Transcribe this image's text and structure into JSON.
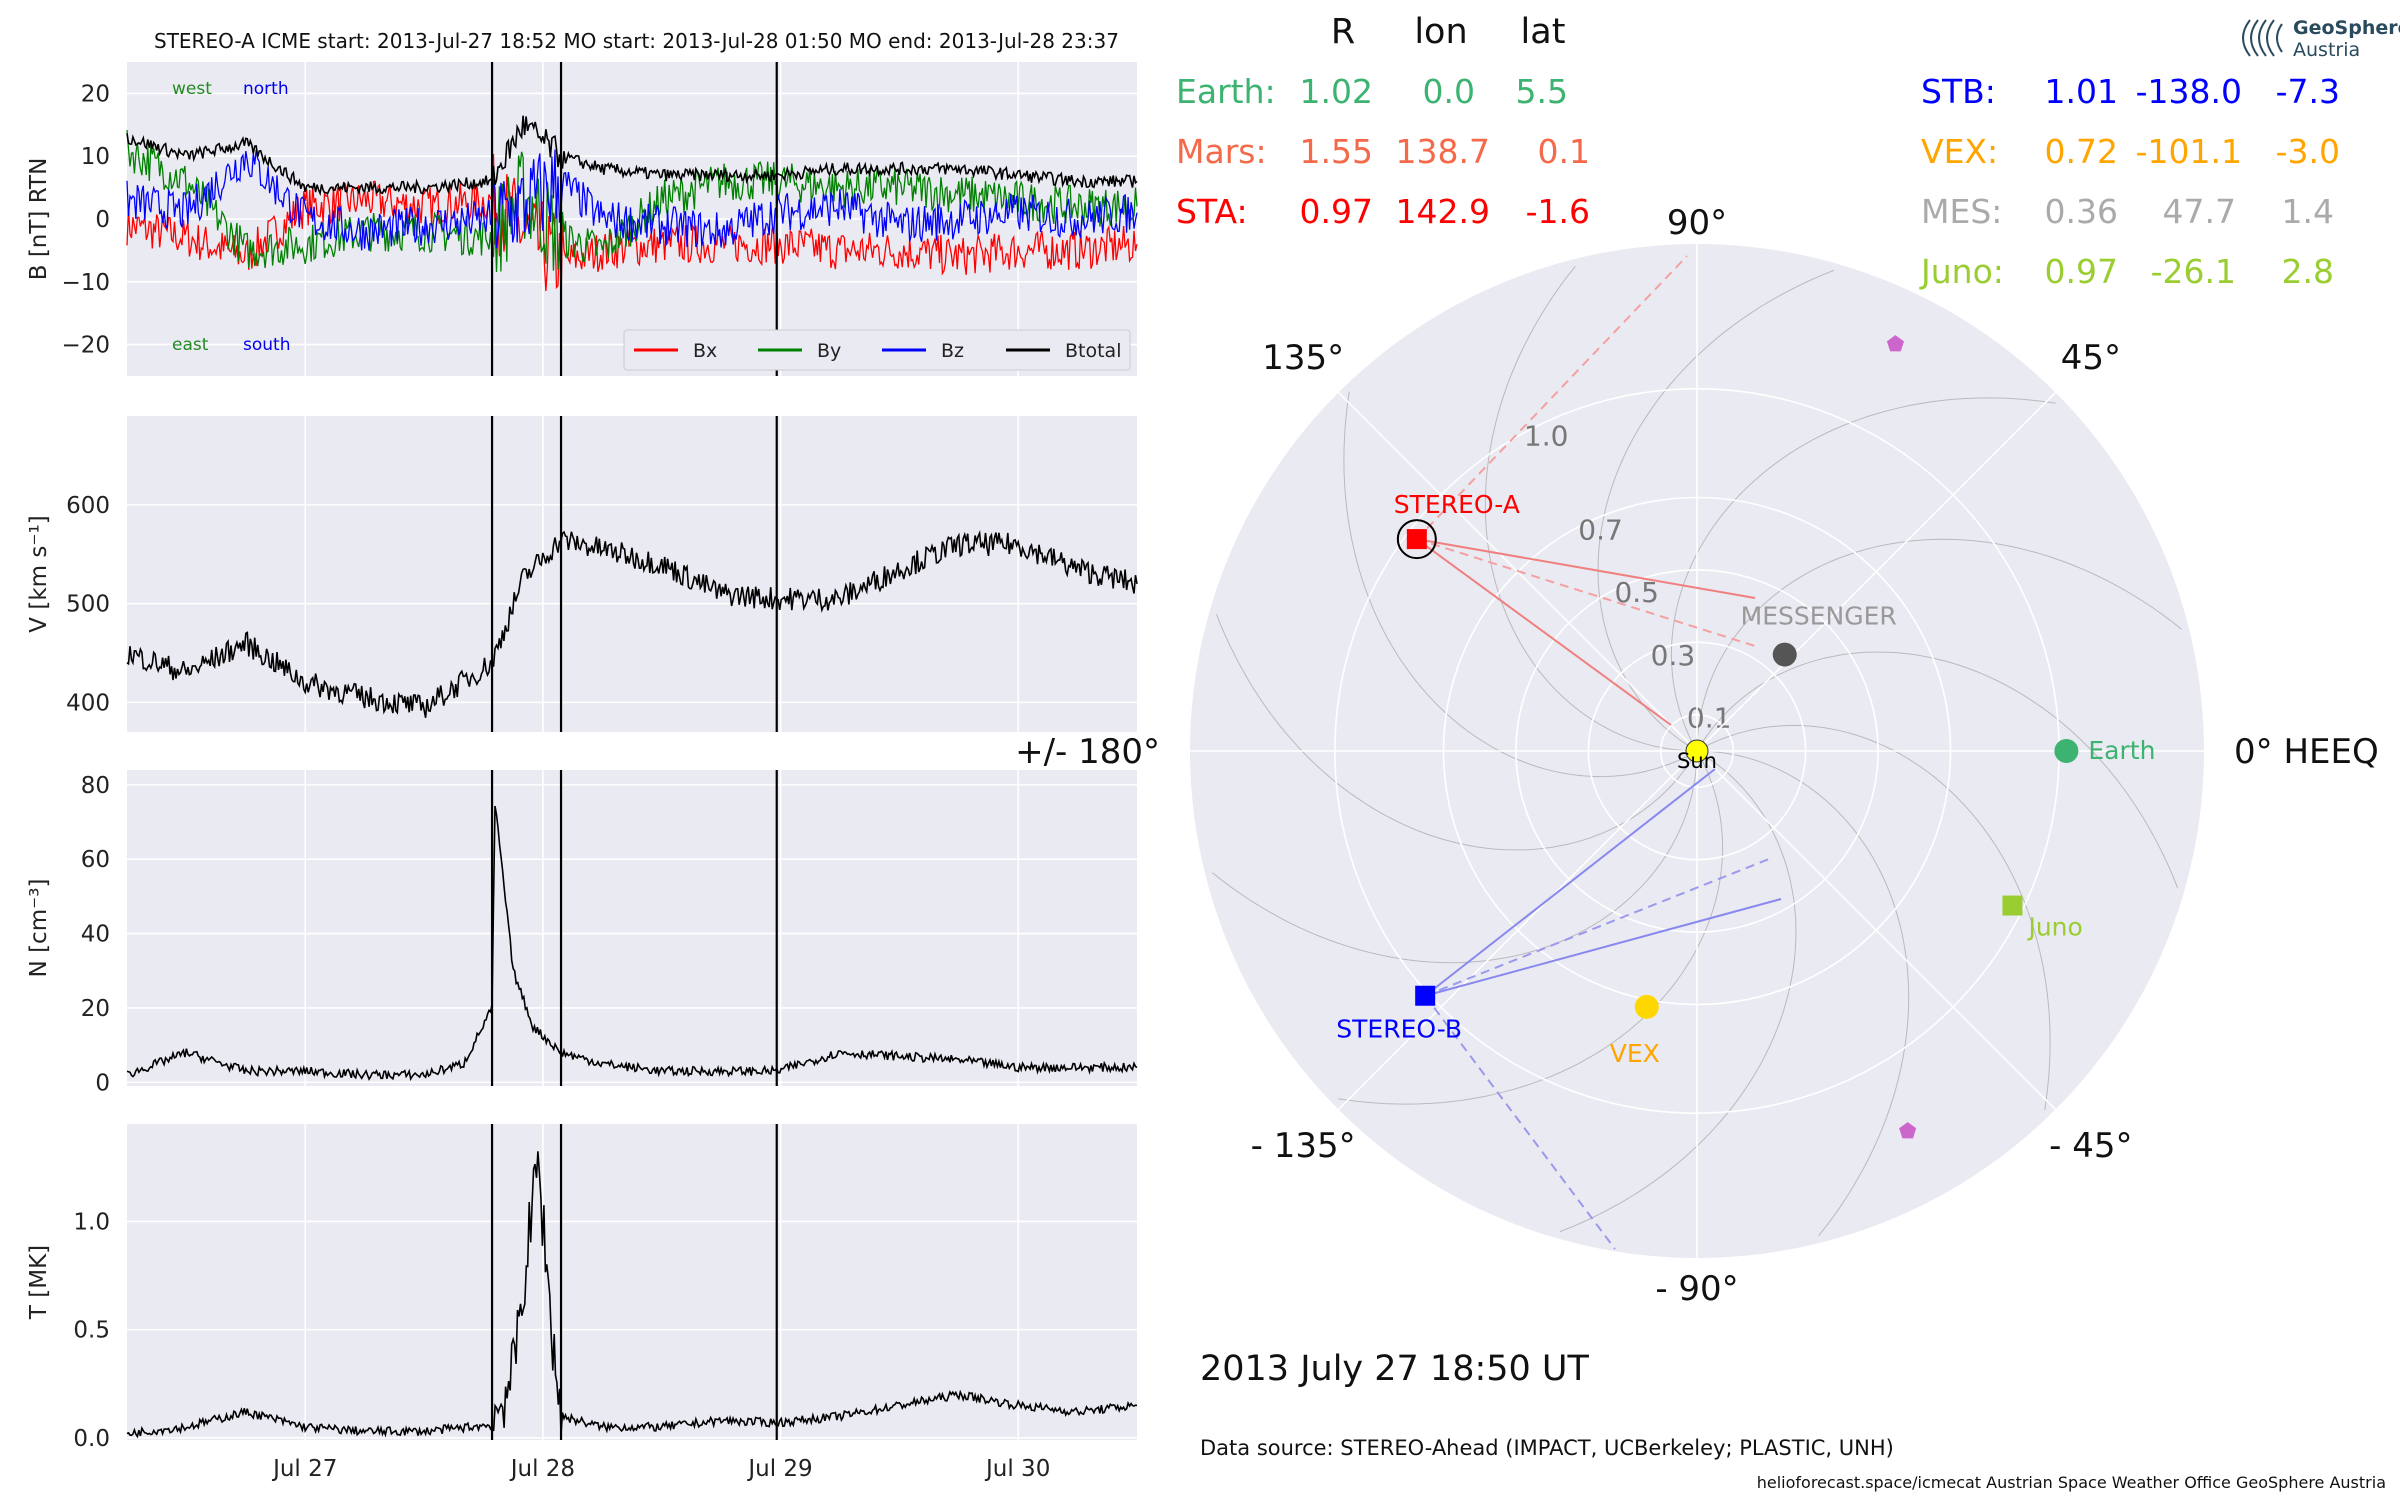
{
  "header": {
    "title": "STEREO-A    ICME start: 2013-Jul-27 18:52   MO start: 2013-Jul-28 01:50   MO end: 2013-Jul-28 23:37"
  },
  "logo": {
    "line1": "GeoSphere",
    "line2": "Austria"
  },
  "positions_table": {
    "columns": [
      "R",
      "lon",
      "lat"
    ],
    "left": [
      {
        "name": "Earth:",
        "r": "1.02",
        "lon": "0.0",
        "lat": "5.5",
        "color": "#3cb371"
      },
      {
        "name": "Mars:",
        "r": "1.55",
        "lon": "138.7",
        "lat": "0.1",
        "color": "#f4694a"
      },
      {
        "name": "STA:",
        "r": "0.97",
        "lon": "142.9",
        "lat": "-1.6",
        "color": "#ff0000"
      }
    ],
    "right": [
      {
        "name": "STB:",
        "r": "1.01",
        "lon": "-138.0",
        "lat": "-7.3",
        "color": "#0000ff"
      },
      {
        "name": "VEX:",
        "r": "0.72",
        "lon": "-101.1",
        "lat": "-3.0",
        "color": "#ffa500"
      },
      {
        "name": "MES:",
        "r": "0.36",
        "lon": "47.7",
        "lat": "1.4",
        "color": "#aaaaaa"
      },
      {
        "name": "Juno:",
        "r": "0.97",
        "lon": "-26.1",
        "lat": "2.8",
        "color": "#9acd32"
      }
    ]
  },
  "footer": {
    "timestamp": "2013 July 27  18:50 UT",
    "source": "Data source: STEREO-Ahead (IMPACT, UCBerkeley; PLASTIC, UNH)",
    "credits": "helioforecast.space/icmecat   Austrian Space Weather Office   GeoSphere Austria"
  },
  "chart_data": [
    {
      "type": "line",
      "panel": "magnetic-field",
      "ylabel": "B [nT] RTN",
      "ylim": [
        -25,
        25
      ],
      "yticks": [
        20,
        10,
        0,
        -10,
        -20
      ],
      "ytick_labels": [
        "20",
        "10",
        "0",
        "−10",
        "−20"
      ],
      "xlim": [
        "2013-07-26 06:00",
        "2013-07-30 12:00"
      ],
      "xticks": [
        "2013-07-27",
        "2013-07-28",
        "2013-07-29",
        "2013-07-30"
      ],
      "xtick_labels": [
        "Jul 27",
        "Jul 28",
        "Jul 29",
        "Jul 30"
      ],
      "grid": true,
      "legend": "bottom-right",
      "annotations": [
        {
          "text": "west",
          "color": "#228b22"
        },
        {
          "text": "north",
          "color": "#0000ee"
        },
        {
          "text": "east",
          "color": "#228b22"
        },
        {
          "text": "south",
          "color": "#0000ee"
        }
      ],
      "series": [
        {
          "name": "Bx",
          "color": "#ff0000",
          "x": [
            "2013-07-26 06:00",
            "2013-07-26 12:00",
            "2013-07-26 18:00",
            "2013-07-27 00:00",
            "2013-07-27 06:00",
            "2013-07-27 12:00",
            "2013-07-27 18:52",
            "2013-07-27 22:00",
            "2013-07-28 01:50",
            "2013-07-28 06:00",
            "2013-07-28 12:00",
            "2013-07-28 18:00",
            "2013-07-28 23:37",
            "2013-07-29 06:00",
            "2013-07-29 12:00",
            "2013-07-29 18:00",
            "2013-07-30 00:00",
            "2013-07-30 06:00",
            "2013-07-30 12:00"
          ],
          "y": [
            -1,
            -3,
            -6,
            2,
            3,
            2,
            3,
            -2,
            -7,
            -5,
            -4,
            -4,
            -4,
            -5,
            -5,
            -6,
            -5,
            -5,
            -4
          ]
        },
        {
          "name": "By",
          "color": "#008000",
          "x": [
            "2013-07-26 06:00",
            "2013-07-26 12:00",
            "2013-07-26 18:00",
            "2013-07-27 00:00",
            "2013-07-27 06:00",
            "2013-07-27 12:00",
            "2013-07-27 18:52",
            "2013-07-27 22:00",
            "2013-07-28 01:50",
            "2013-07-28 06:00",
            "2013-07-28 12:00",
            "2013-07-28 18:00",
            "2013-07-28 23:37",
            "2013-07-29 06:00",
            "2013-07-29 12:00",
            "2013-07-29 18:00",
            "2013-07-30 00:00",
            "2013-07-30 06:00",
            "2013-07-30 12:00"
          ],
          "y": [
            11,
            6,
            -5,
            -4,
            -2,
            -2,
            -3,
            4,
            -3,
            -5,
            3,
            6,
            6,
            5,
            5,
            4,
            3,
            2,
            2
          ]
        },
        {
          "name": "Bz",
          "color": "#0000ff",
          "x": [
            "2013-07-26 06:00",
            "2013-07-26 12:00",
            "2013-07-26 18:00",
            "2013-07-27 00:00",
            "2013-07-27 06:00",
            "2013-07-27 12:00",
            "2013-07-27 18:52",
            "2013-07-27 22:00",
            "2013-07-28 01:50",
            "2013-07-28 06:00",
            "2013-07-28 12:00",
            "2013-07-28 18:00",
            "2013-07-28 23:37",
            "2013-07-29 06:00",
            "2013-07-29 12:00",
            "2013-07-29 18:00",
            "2013-07-30 00:00",
            "2013-07-30 06:00",
            "2013-07-30 12:00"
          ],
          "y": [
            3,
            1,
            10,
            0,
            -2,
            -1,
            0,
            2,
            6,
            0,
            -1,
            -2,
            1,
            2,
            -1,
            0,
            1,
            0,
            1
          ]
        },
        {
          "name": "Btotal",
          "color": "#000000",
          "x": [
            "2013-07-26 06:00",
            "2013-07-26 12:00",
            "2013-07-26 18:00",
            "2013-07-27 00:00",
            "2013-07-27 06:00",
            "2013-07-27 12:00",
            "2013-07-27 18:52",
            "2013-07-27 22:00",
            "2013-07-28 01:50",
            "2013-07-28 06:00",
            "2013-07-28 12:00",
            "2013-07-28 18:00",
            "2013-07-28 23:37",
            "2013-07-29 06:00",
            "2013-07-29 12:00",
            "2013-07-29 18:00",
            "2013-07-30 00:00",
            "2013-07-30 06:00",
            "2013-07-30 12:00"
          ],
          "y": [
            13,
            10,
            12,
            5,
            5,
            5,
            6,
            15,
            10,
            8,
            7,
            7,
            7,
            8,
            8,
            8,
            7,
            6,
            6
          ]
        }
      ],
      "event_lines": [
        "2013-07-27 18:52",
        "2013-07-28 01:50",
        "2013-07-28 23:37"
      ]
    },
    {
      "type": "line",
      "panel": "speed",
      "ylabel": "V [km s⁻¹]",
      "ylim": [
        370,
        690
      ],
      "yticks": [
        600,
        500,
        400
      ],
      "ytick_labels": [
        "600",
        "500",
        "400"
      ],
      "grid": true,
      "series": [
        {
          "name": "V",
          "color": "#000000",
          "x": [
            "2013-07-26 06:00",
            "2013-07-26 12:00",
            "2013-07-26 18:00",
            "2013-07-27 00:00",
            "2013-07-27 06:00",
            "2013-07-27 12:00",
            "2013-07-27 18:52",
            "2013-07-27 22:00",
            "2013-07-28 01:50",
            "2013-07-28 06:00",
            "2013-07-28 12:00",
            "2013-07-28 18:00",
            "2013-07-28 23:37",
            "2013-07-29 06:00",
            "2013-07-29 12:00",
            "2013-07-29 18:00",
            "2013-07-30 00:00",
            "2013-07-30 06:00",
            "2013-07-30 12:00"
          ],
          "y": [
            450,
            430,
            460,
            420,
            405,
            395,
            440,
            525,
            565,
            555,
            540,
            510,
            505,
            505,
            535,
            560,
            560,
            535,
            520
          ]
        }
      ]
    },
    {
      "type": "line",
      "panel": "density",
      "ylabel": "N [cm⁻³]",
      "ylim": [
        -1,
        84
      ],
      "yticks": [
        80,
        60,
        40,
        20,
        0
      ],
      "ytick_labels": [
        "80",
        "60",
        "40",
        "20",
        "0"
      ],
      "grid": true,
      "series": [
        {
          "name": "N",
          "color": "#000000",
          "x": [
            "2013-07-26 06:00",
            "2013-07-26 12:00",
            "2013-07-26 18:00",
            "2013-07-27 00:00",
            "2013-07-27 06:00",
            "2013-07-27 12:00",
            "2013-07-27 16:00",
            "2013-07-27 18:52",
            "2013-07-27 19:10",
            "2013-07-27 21:00",
            "2013-07-27 23:00",
            "2013-07-28 01:50",
            "2013-07-28 06:00",
            "2013-07-28 12:00",
            "2013-07-28 18:00",
            "2013-07-28 23:37",
            "2013-07-29 06:00",
            "2013-07-29 12:00",
            "2013-07-29 18:00",
            "2013-07-30 00:00",
            "2013-07-30 06:00",
            "2013-07-30 12:00"
          ],
          "y": [
            2,
            8,
            3,
            3,
            2,
            2,
            5,
            20,
            75,
            30,
            15,
            8,
            5,
            3,
            3,
            3,
            8,
            7,
            6,
            4,
            4,
            4
          ]
        }
      ]
    },
    {
      "type": "line",
      "panel": "temperature",
      "ylabel": "T [MK]",
      "ylim": [
        -0.01,
        1.45
      ],
      "yticks": [
        1.0,
        0.5,
        0.0
      ],
      "ytick_labels": [
        "1.0",
        "0.5",
        "0.0"
      ],
      "grid": true,
      "series": [
        {
          "name": "T",
          "color": "#000000",
          "x": [
            "2013-07-26 06:00",
            "2013-07-26 12:00",
            "2013-07-26 18:00",
            "2013-07-27 00:00",
            "2013-07-27 06:00",
            "2013-07-27 12:00",
            "2013-07-27 18:52",
            "2013-07-27 21:00",
            "2013-07-27 23:30",
            "2013-07-28 01:00",
            "2013-07-28 01:50",
            "2013-07-28 06:00",
            "2013-07-28 12:00",
            "2013-07-28 18:00",
            "2013-07-28 23:37",
            "2013-07-29 06:00",
            "2013-07-29 12:00",
            "2013-07-29 18:00",
            "2013-07-30 00:00",
            "2013-07-30 06:00",
            "2013-07-30 12:00"
          ],
          "y": [
            0.02,
            0.05,
            0.12,
            0.05,
            0.03,
            0.03,
            0.06,
            0.3,
            1.28,
            0.45,
            0.1,
            0.05,
            0.05,
            0.08,
            0.07,
            0.1,
            0.15,
            0.2,
            0.15,
            0.12,
            0.15
          ]
        }
      ]
    },
    {
      "type": "scatter",
      "panel": "heeq-polar",
      "coordinate_system": "HEEQ",
      "radial_ticks": [
        0.1,
        0.3,
        0.5,
        0.7,
        1.0
      ],
      "radial_tick_labels": [
        "0.1",
        "0.3",
        "0.5",
        "0.7",
        "1.0"
      ],
      "angle_labels": [
        {
          "angle": 90,
          "text": "90°"
        },
        {
          "angle": 45,
          "text": "45°"
        },
        {
          "angle": 135,
          "text": "135°"
        },
        {
          "angle": 0,
          "text": "0° HEEQ"
        },
        {
          "angle": 180,
          "text": "+/- 180°"
        },
        {
          "angle": -45,
          "text": "- 45°"
        },
        {
          "angle": -90,
          "text": "- 90°"
        },
        {
          "angle": -135,
          "text": "- 135°"
        }
      ],
      "bodies": [
        {
          "label": "Sun",
          "r": 0.0,
          "lon": 0.0,
          "marker": "circle",
          "color": "#ffff00"
        },
        {
          "label": "Earth",
          "r": 1.02,
          "lon": 0.0,
          "marker": "circle",
          "color": "#3cb371"
        },
        {
          "label": "MESSENGER",
          "r": 0.36,
          "lon": 47.7,
          "marker": "circle",
          "color": "#555555",
          "label_color": "#999999"
        },
        {
          "label": "VEX",
          "r": 0.72,
          "lon": -101.1,
          "marker": "circle",
          "color": "#ffd700",
          "label_color": "#ffa500"
        },
        {
          "label": "Juno",
          "r": 0.97,
          "lon": -26.1,
          "marker": "square",
          "color": "#9acd32"
        },
        {
          "label": "STEREO-A",
          "r": 0.97,
          "lon": 142.9,
          "marker": "square",
          "color": "#ff0000"
        },
        {
          "label": "STEREO-B",
          "r": 1.01,
          "lon": -138.0,
          "marker": "square",
          "color": "#0000ff"
        },
        {
          "label": "",
          "r": 1.25,
          "lon": 64,
          "marker": "pentagon",
          "color": "#cc66cc"
        },
        {
          "label": "",
          "r": 1.2,
          "lon": -61,
          "marker": "pentagon",
          "color": "#cc66cc"
        }
      ]
    }
  ]
}
